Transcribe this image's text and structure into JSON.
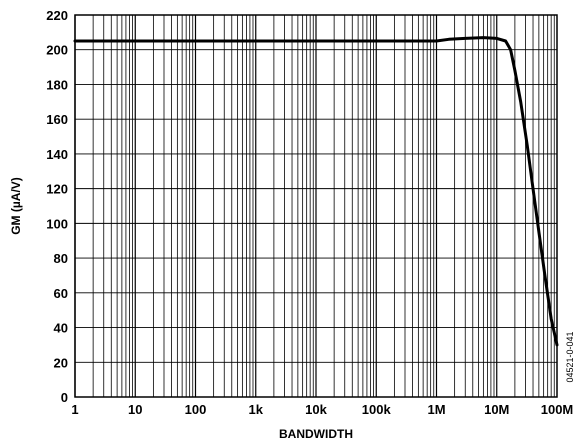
{
  "chart_data": {
    "type": "line",
    "title": "",
    "xlabel": "BANDWIDTH",
    "ylabel": "GM (µA/V)",
    "x_scale": "log",
    "xlim": [
      1,
      100000000
    ],
    "ylim": [
      0,
      220
    ],
    "grid": true,
    "legend": "none",
    "x_ticks": [
      {
        "value": 1,
        "label": "1"
      },
      {
        "value": 10,
        "label": "10"
      },
      {
        "value": 100,
        "label": "100"
      },
      {
        "value": 1000,
        "label": "1k"
      },
      {
        "value": 10000,
        "label": "10k"
      },
      {
        "value": 100000,
        "label": "100k"
      },
      {
        "value": 1000000,
        "label": "1M"
      },
      {
        "value": 10000000,
        "label": "10M"
      },
      {
        "value": 100000000,
        "label": "100M"
      }
    ],
    "y_ticks": [
      0,
      20,
      40,
      60,
      80,
      100,
      120,
      140,
      160,
      180,
      200,
      220
    ],
    "series": [
      {
        "x": [
          1,
          100000,
          1000000,
          1600000,
          3000000,
          6000000,
          10000000,
          14000000,
          17000000,
          20000000,
          25000000,
          32000000,
          40000000,
          50000000,
          63000000,
          80000000,
          100000000
        ],
        "y": [
          205,
          205,
          205,
          206,
          206.5,
          207,
          206.5,
          205,
          200,
          188,
          170,
          145,
          120,
          95,
          70,
          45,
          30
        ]
      }
    ],
    "line_color": "#000000",
    "figure_code": "04521-0-041"
  }
}
